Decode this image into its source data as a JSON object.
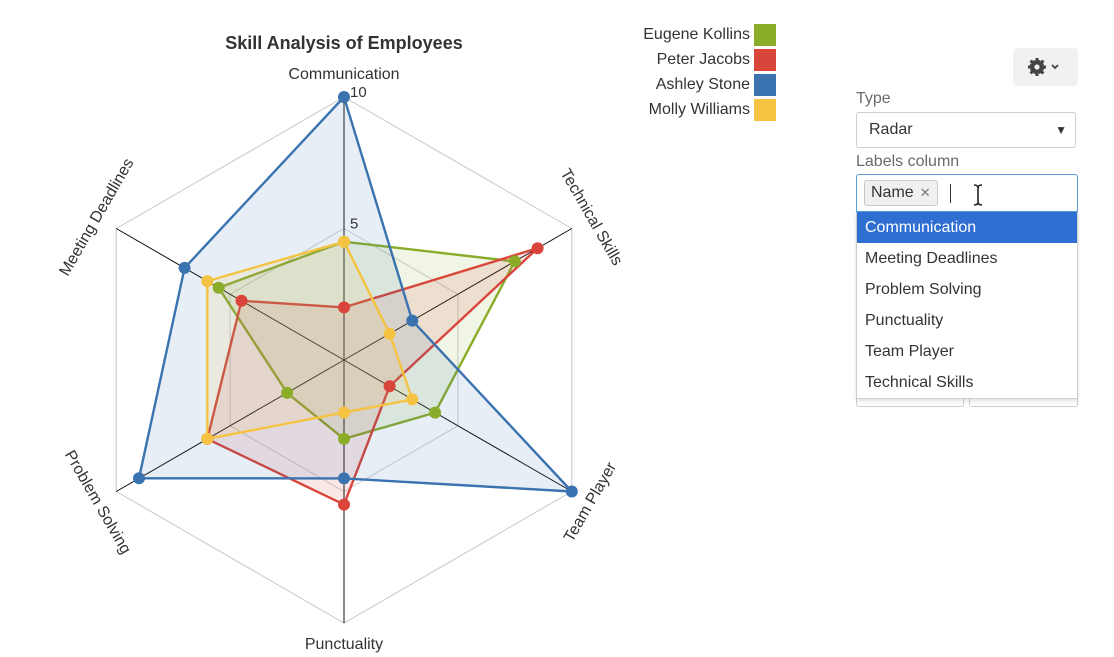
{
  "chart_data": {
    "type": "radar",
    "title": "Skill Analysis of Employees",
    "axes": [
      "Communication",
      "Technical Skills",
      "Team Player",
      "Punctuality",
      "Problem Solving",
      "Meeting Deadlines"
    ],
    "rlim": [
      0,
      10
    ],
    "ticks": [
      5,
      10
    ],
    "tick_labels": [
      "5",
      "10"
    ],
    "series": [
      {
        "name": "Eugene Kollins",
        "color": "#8aac29",
        "values": [
          4.5,
          7.5,
          4,
          3,
          2.5,
          5.5
        ]
      },
      {
        "name": "Peter Jacobs",
        "color": "#d9453a",
        "values": [
          2,
          8.5,
          2,
          5.5,
          6,
          4.5
        ]
      },
      {
        "name": "Ashley Stone",
        "color": "#3a73b0",
        "values": [
          10,
          3,
          10,
          4.5,
          9,
          7
        ]
      },
      {
        "name": "Molly Williams",
        "color": "#f5c342",
        "values": [
          4.5,
          2,
          3,
          2,
          6,
          6
        ]
      }
    ],
    "legend_position": "top-right"
  },
  "controls": {
    "settings_icon": "gear-icon",
    "type_label": "Type",
    "type_value": "Radar",
    "labels_column_label": "Labels column",
    "selected_tag": "Name",
    "dropdown_options": [
      "Communication",
      "Meeting Deadlines",
      "Problem Solving",
      "Punctuality",
      "Team Player",
      "Technical Skills"
    ],
    "highlighted_option": "Communication"
  }
}
